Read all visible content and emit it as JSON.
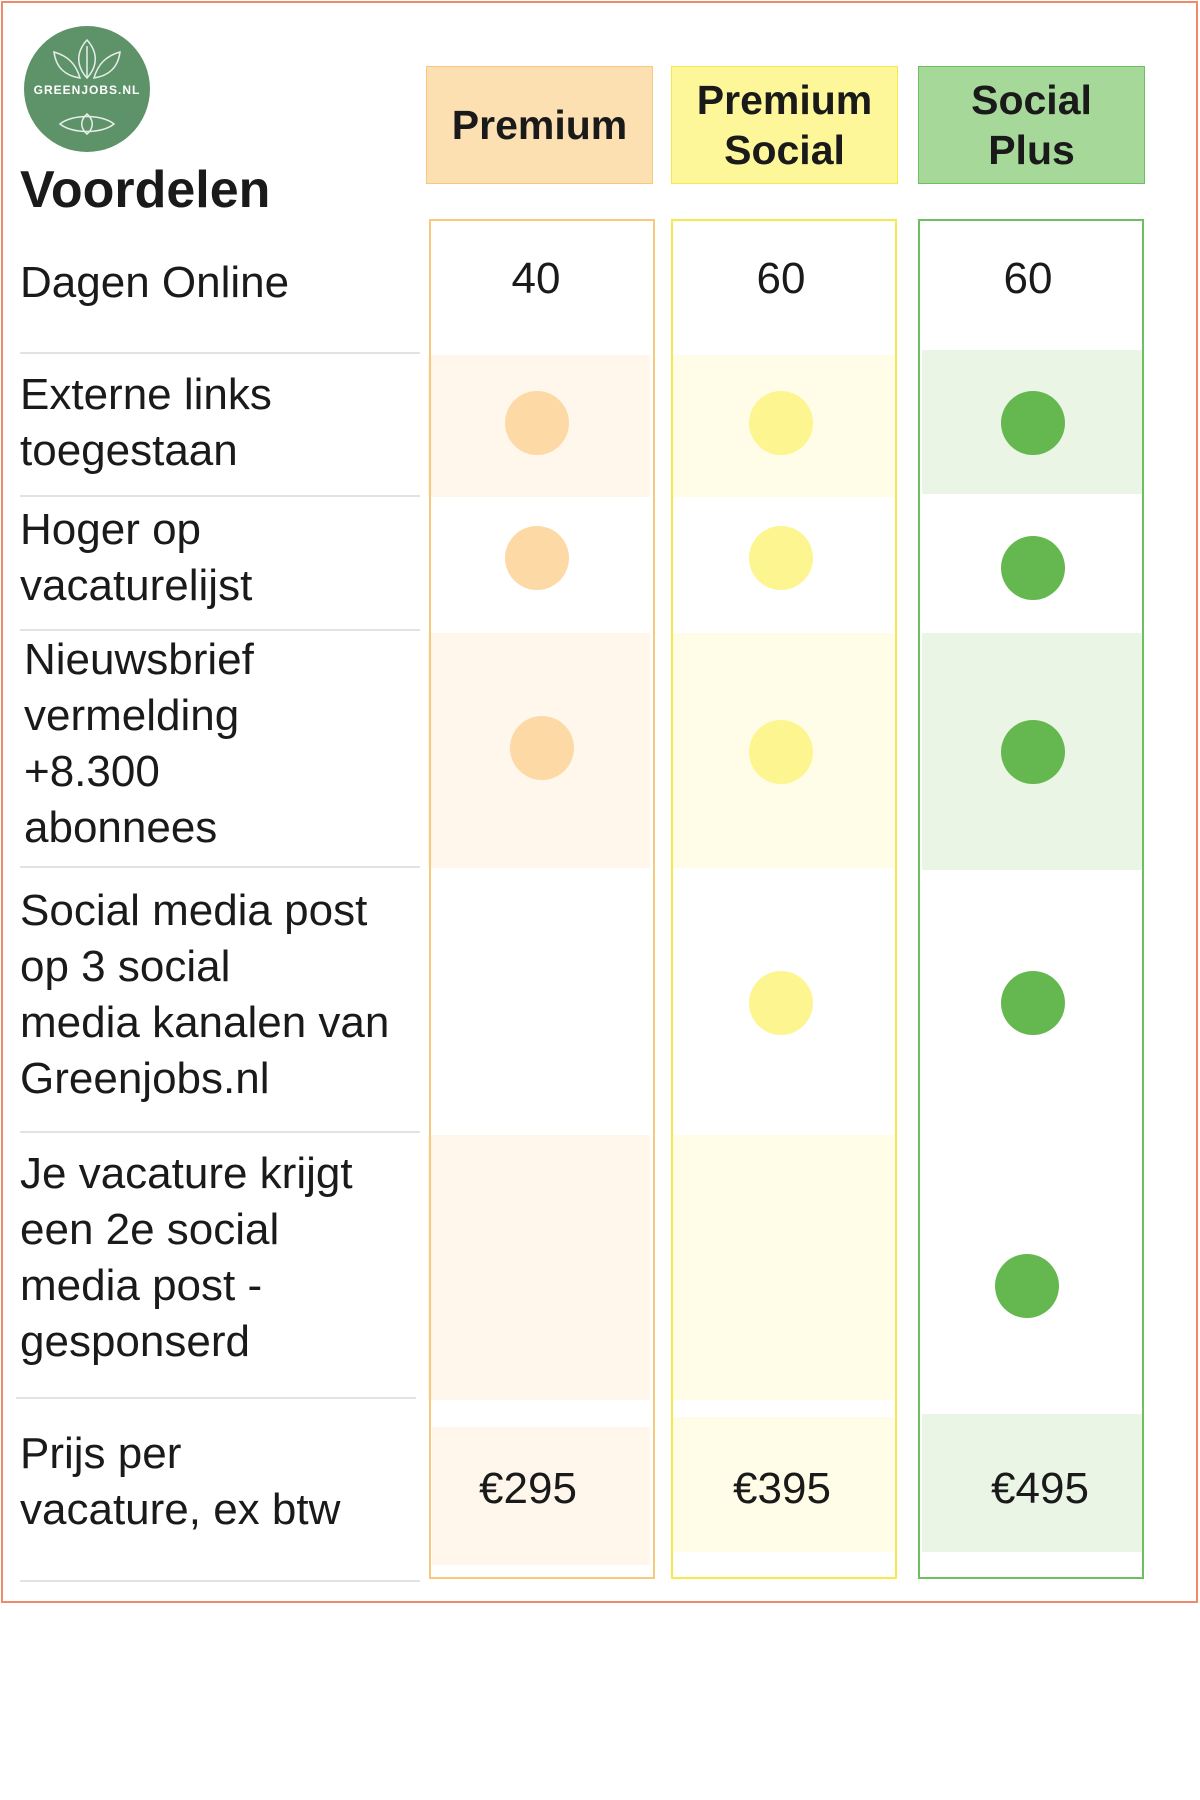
{
  "brand": {
    "logo_text": "GREENJOBS.NL"
  },
  "title": "Voordelen",
  "plans": [
    {
      "name_line1": "Premium",
      "name_line2": "",
      "color": "#fde0b2",
      "border": "#f7c97c",
      "dot": "#fdd9a6",
      "shade": "#fff6ec"
    },
    {
      "name_line1": "Premium",
      "name_line2": "Social",
      "color": "#fdf79a",
      "border": "#f5ea49",
      "dot": "#fdf58f",
      "shade": "#fffde8"
    },
    {
      "name_line1": "Social",
      "name_line2": "Plus",
      "color": "#a6d89a",
      "border": "#6ac15d",
      "dot": "#64b84f",
      "shade": "#eaf5e6"
    }
  ],
  "features": [
    {
      "label": [
        "Dagen Online"
      ]
    },
    {
      "label": [
        "Externe links",
        "toegestaan"
      ]
    },
    {
      "label": [
        "Hoger op",
        "vacaturelijst"
      ]
    },
    {
      "label": [
        "Nieuwsbrief",
        "vermelding",
        "+8.300",
        "abonnees"
      ]
    },
    {
      "label": [
        "Social media post",
        "op 3 social",
        "media kanalen van",
        "Greenjobs.nl"
      ]
    },
    {
      "label": [
        "Je vacature krijgt",
        "een 2e social",
        "media post -",
        "gesponserd"
      ]
    },
    {
      "label": [
        "Prijs per",
        "vacature, ex btw"
      ]
    }
  ],
  "days_online": [
    "40",
    "60",
    "60"
  ],
  "prices": [
    "€295",
    "€395",
    "€495"
  ],
  "included": [
    [
      true,
      true,
      true
    ],
    [
      true,
      true,
      true
    ],
    [
      true,
      true,
      true
    ],
    [
      false,
      true,
      true
    ],
    [
      false,
      false,
      true
    ]
  ]
}
